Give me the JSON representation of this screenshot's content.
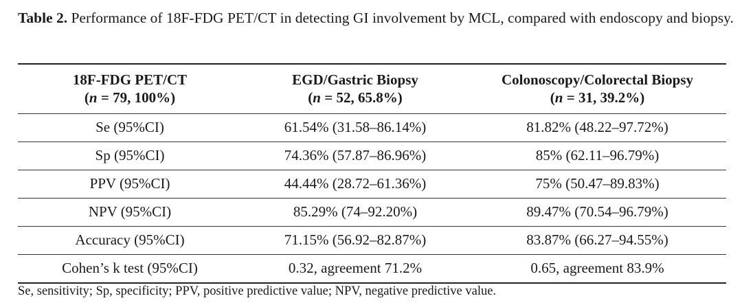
{
  "caption": {
    "label": "Table 2.",
    "text": " Performance of 18F-FDG PET/CT in detecting GI involvement by MCL, compared with endoscopy and biopsy."
  },
  "table": {
    "headers": [
      {
        "title": "18F-FDG PET/CT",
        "sub_italic": "n",
        "sub_rest": " = 79, 100%)"
      },
      {
        "title": "EGD/Gastric Biopsy",
        "sub_italic": "n",
        "sub_rest": " = 52, 65.8%)"
      },
      {
        "title": "Colonoscopy/Colorectal Biopsy",
        "sub_italic": "n",
        "sub_rest": " = 31, 39.2%)"
      }
    ],
    "sub_open": "(",
    "rows": [
      [
        "Se (95%CI)",
        "61.54% (31.58–86.14%)",
        "81.82% (48.22–97.72%)"
      ],
      [
        "Sp (95%CI)",
        "74.36% (57.87–86.96%)",
        "85% (62.11–96.79%)"
      ],
      [
        "PPV (95%CI)",
        "44.44% (28.72–61.36%)",
        "75% (50.47–89.83%)"
      ],
      [
        "NPV (95%CI)",
        "85.29% (74–92.20%)",
        "89.47% (70.54–96.79%)"
      ],
      [
        "Accuracy (95%CI)",
        "71.15% (56.92–82.87%)",
        "83.87% (66.27–94.55%)"
      ],
      [
        "Cohen’s k test (95%CI)",
        "0.32, agreement 71.2%",
        "0.65, agreement 83.9%"
      ]
    ]
  },
  "footnote": "Se, sensitivity; Sp, specificity; PPV, positive predictive value; NPV, negative predictive value."
}
